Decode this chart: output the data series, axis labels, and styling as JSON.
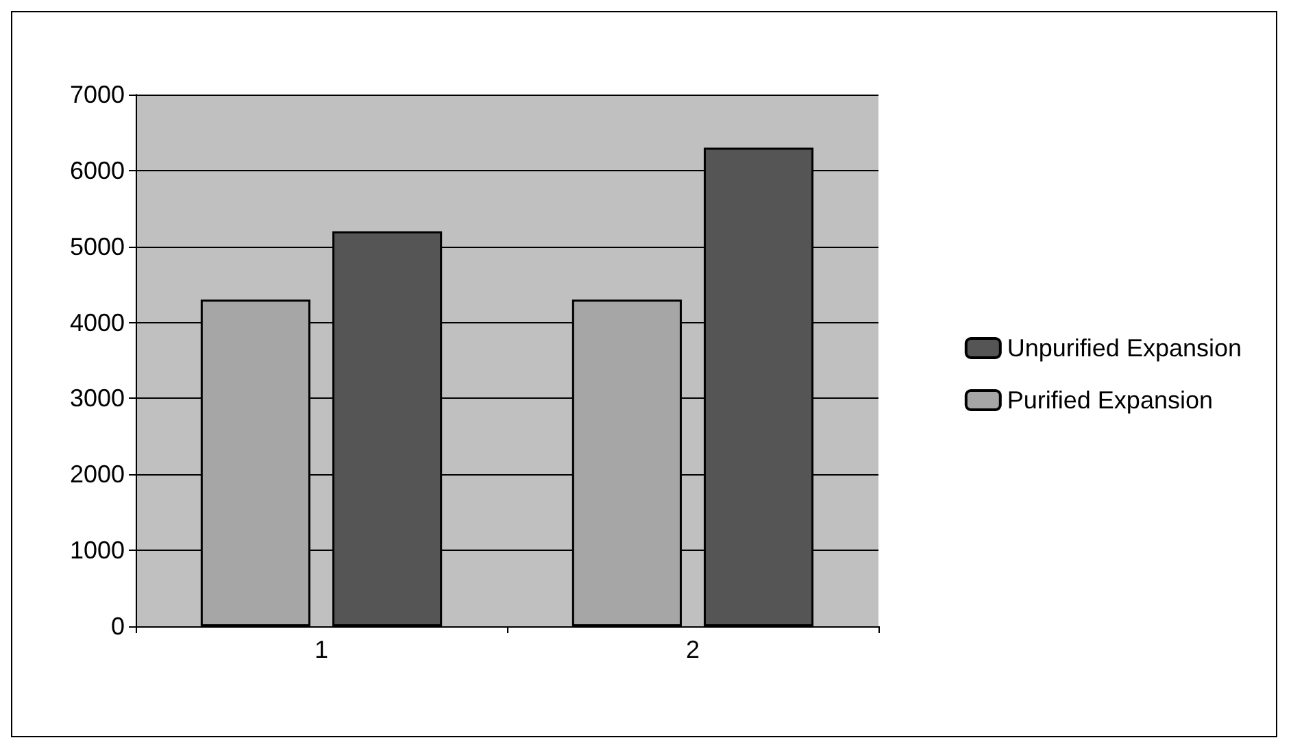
{
  "chart_data": {
    "type": "bar",
    "categories": [
      "1",
      "2"
    ],
    "series": [
      {
        "name": "Purified Expansion",
        "color": "#a6a6a6",
        "values": [
          4300,
          4300
        ]
      },
      {
        "name": "Unpurified Expansion",
        "color": "#555555",
        "values": [
          5200,
          6300
        ]
      }
    ],
    "ylim": [
      0,
      7000
    ],
    "yticks": [
      0,
      1000,
      2000,
      3000,
      4000,
      5000,
      6000,
      7000
    ],
    "grid": "y",
    "legend": "right"
  }
}
